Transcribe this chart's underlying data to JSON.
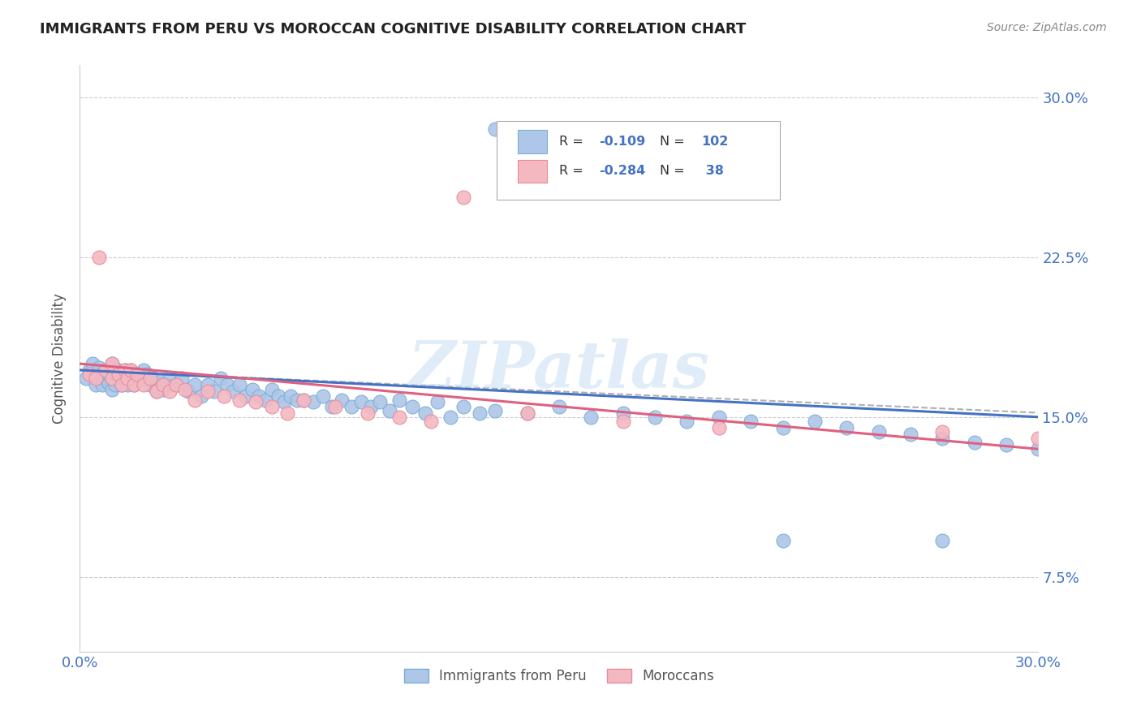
{
  "title": "IMMIGRANTS FROM PERU VS MOROCCAN COGNITIVE DISABILITY CORRELATION CHART",
  "source": "Source: ZipAtlas.com",
  "ylabel": "Cognitive Disability",
  "yticks": [
    "7.5%",
    "15.0%",
    "22.5%",
    "30.0%"
  ],
  "ytick_vals": [
    0.075,
    0.15,
    0.225,
    0.3
  ],
  "xtick_vals": [
    0.0,
    0.05,
    0.1,
    0.15,
    0.2,
    0.25,
    0.3
  ],
  "xlim": [
    0.0,
    0.3
  ],
  "ylim": [
    0.04,
    0.315
  ],
  "peru_color": "#aec6e8",
  "morocco_color": "#f4b8c1",
  "peru_edge": "#7aafd4",
  "morocco_edge": "#e88a9a",
  "trend_peru_color": "#4472c4",
  "trend_morocco_color": "#e06080",
  "watermark": "ZIPatlas"
}
